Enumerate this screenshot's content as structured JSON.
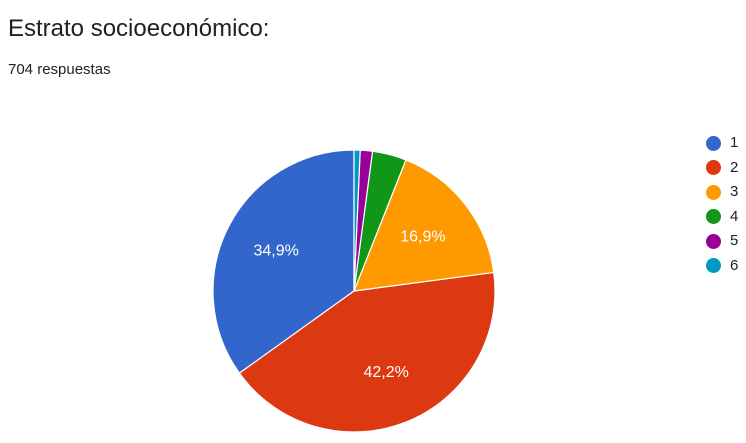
{
  "header": {
    "title": "Estrato socioeconómico:",
    "responses": "704 respuestas"
  },
  "chart_data": {
    "type": "pie",
    "title": "Estrato socioeconómico:",
    "categories": [
      "1",
      "2",
      "3",
      "4",
      "5",
      "6"
    ],
    "values": [
      34.9,
      42.2,
      16.9,
      3.9,
      1.4,
      0.7
    ],
    "slice_labels": [
      "34,9%",
      "42,2%",
      "16,9%",
      "",
      "",
      ""
    ],
    "colors": [
      "#3366cc",
      "#dc3912",
      "#ff9900",
      "#109618",
      "#990099",
      "#0099c6"
    ],
    "start_angle_deg": 90,
    "direction": "counterclockwise",
    "legend_position": "right"
  }
}
